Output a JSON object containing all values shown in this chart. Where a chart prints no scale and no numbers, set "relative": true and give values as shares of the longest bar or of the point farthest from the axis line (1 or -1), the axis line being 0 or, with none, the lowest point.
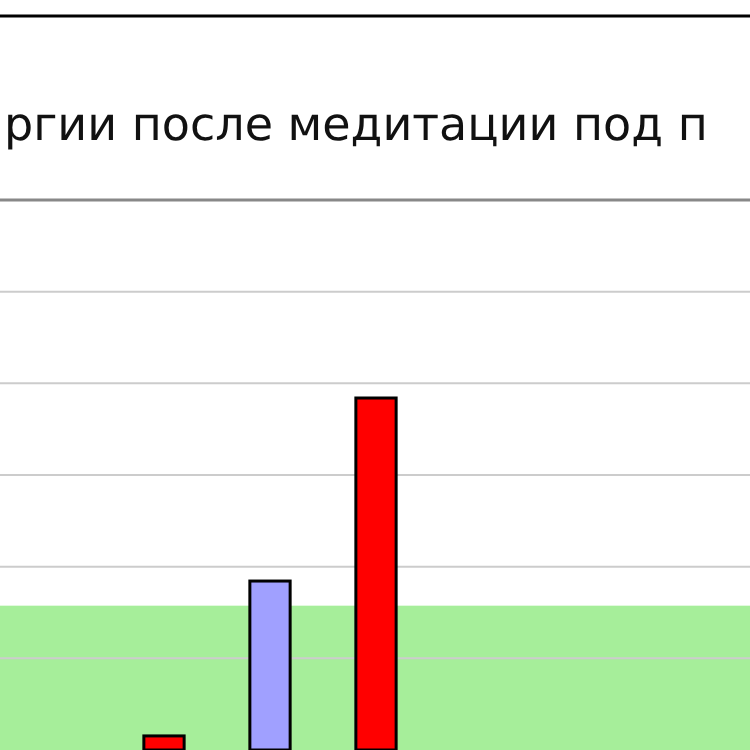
{
  "chart_data": {
    "type": "bar",
    "title": "ргии после медитации под п",
    "relative": true,
    "grid": "y",
    "categories": [
      null,
      null,
      null
    ],
    "values": [
      0.04,
      0.48,
      1.0
    ],
    "colors": [
      "#ff0000",
      "#a0a0ff",
      "#ff0000"
    ],
    "bands": [
      {
        "axis": "y",
        "from": 0,
        "to": 0.41,
        "color": "#a6ee9a"
      }
    ]
  }
}
